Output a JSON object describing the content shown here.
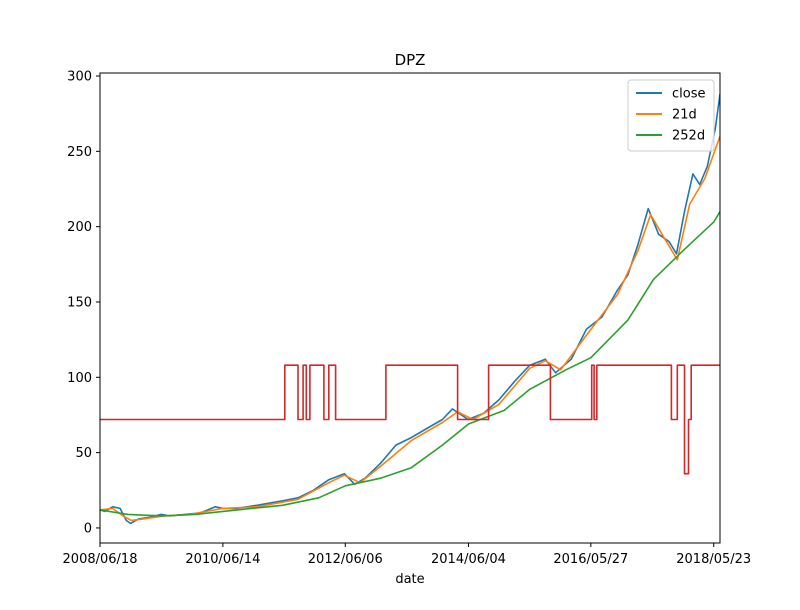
{
  "chart_data": {
    "type": "line",
    "title": "DPZ",
    "xlabel": "date",
    "ylabel": "",
    "xlim": [
      "2008-06-18",
      "2018-06-29"
    ],
    "ylim": [
      -10,
      302
    ],
    "x_ticks": [
      "2008/06/18",
      "2010/06/14",
      "2012/06/06",
      "2014/06/04",
      "2016/05/27",
      "2018/05/23"
    ],
    "y_ticks": [
      0,
      50,
      100,
      150,
      200,
      250,
      300
    ],
    "grid": false,
    "legend_position": "top-right",
    "colors": {
      "close": "#1f77b4",
      "21d": "#ff7f0e",
      "252d": "#2ca02c",
      "regime": "#d62728"
    },
    "series": [
      {
        "name": "close",
        "color": "#1f77b4",
        "points": [
          [
            "2008-06-18",
            12
          ],
          [
            "2008-07-15",
            11
          ],
          [
            "2008-09-01",
            14
          ],
          [
            "2008-10-15",
            13
          ],
          [
            "2008-11-20",
            5
          ],
          [
            "2008-12-15",
            3
          ],
          [
            "2009-02-01",
            6
          ],
          [
            "2009-04-01",
            7
          ],
          [
            "2009-06-15",
            9
          ],
          [
            "2009-08-01",
            8
          ],
          [
            "2009-11-01",
            9
          ],
          [
            "2010-02-01",
            10
          ],
          [
            "2010-05-01",
            14
          ],
          [
            "2010-06-14",
            13
          ],
          [
            "2010-09-01",
            13
          ],
          [
            "2011-01-01",
            15
          ],
          [
            "2011-06-01",
            18
          ],
          [
            "2011-09-01",
            20
          ],
          [
            "2011-12-01",
            25
          ],
          [
            "2012-03-01",
            32
          ],
          [
            "2012-06-01",
            36
          ],
          [
            "2012-08-01",
            29
          ],
          [
            "2012-10-01",
            33
          ],
          [
            "2013-01-01",
            43
          ],
          [
            "2013-04-01",
            55
          ],
          [
            "2013-07-01",
            60
          ],
          [
            "2013-10-01",
            66
          ],
          [
            "2014-01-01",
            72
          ],
          [
            "2014-03-01",
            79
          ],
          [
            "2014-06-01",
            72
          ],
          [
            "2014-09-01",
            76
          ],
          [
            "2014-12-01",
            85
          ],
          [
            "2015-03-01",
            97
          ],
          [
            "2015-06-01",
            108
          ],
          [
            "2015-09-01",
            112
          ],
          [
            "2015-11-01",
            103
          ],
          [
            "2016-02-01",
            112
          ],
          [
            "2016-05-01",
            132
          ],
          [
            "2016-08-01",
            140
          ],
          [
            "2016-11-01",
            158
          ],
          [
            "2017-01-01",
            168
          ],
          [
            "2017-03-01",
            188
          ],
          [
            "2017-05-01",
            212
          ],
          [
            "2017-07-01",
            195
          ],
          [
            "2017-09-01",
            190
          ],
          [
            "2017-10-15",
            182
          ],
          [
            "2017-12-01",
            210
          ],
          [
            "2018-01-20",
            235
          ],
          [
            "2018-03-01",
            228
          ],
          [
            "2018-04-15",
            240
          ],
          [
            "2018-06-01",
            265
          ],
          [
            "2018-06-29",
            288
          ]
        ]
      },
      {
        "name": "21d",
        "color": "#ff7f0e",
        "points": [
          [
            "2008-06-18",
            12
          ],
          [
            "2008-09-01",
            13
          ],
          [
            "2008-11-01",
            8
          ],
          [
            "2008-12-20",
            5
          ],
          [
            "2009-03-01",
            6
          ],
          [
            "2009-07-01",
            8
          ],
          [
            "2009-12-01",
            9
          ],
          [
            "2010-06-14",
            13
          ],
          [
            "2011-01-01",
            14
          ],
          [
            "2011-09-01",
            19
          ],
          [
            "2012-03-01",
            30
          ],
          [
            "2012-06-01",
            35
          ],
          [
            "2012-09-01",
            30
          ],
          [
            "2013-01-01",
            41
          ],
          [
            "2013-07-01",
            58
          ],
          [
            "2014-01-01",
            70
          ],
          [
            "2014-04-01",
            77
          ],
          [
            "2014-07-01",
            72
          ],
          [
            "2014-12-01",
            82
          ],
          [
            "2015-06-01",
            106
          ],
          [
            "2015-09-01",
            111
          ],
          [
            "2015-12-01",
            105
          ],
          [
            "2016-05-01",
            128
          ],
          [
            "2016-11-01",
            155
          ],
          [
            "2017-03-01",
            184
          ],
          [
            "2017-05-15",
            208
          ],
          [
            "2017-08-01",
            193
          ],
          [
            "2017-10-20",
            178
          ],
          [
            "2018-01-01",
            215
          ],
          [
            "2018-04-01",
            232
          ],
          [
            "2018-06-29",
            260
          ]
        ]
      },
      {
        "name": "252d",
        "color": "#2ca02c",
        "points": [
          [
            "2008-06-18",
            12
          ],
          [
            "2008-12-01",
            9
          ],
          [
            "2009-06-18",
            8
          ],
          [
            "2010-01-01",
            9
          ],
          [
            "2010-06-14",
            11
          ],
          [
            "2011-06-01",
            15
          ],
          [
            "2012-01-01",
            20
          ],
          [
            "2012-06-06",
            28
          ],
          [
            "2013-01-01",
            33
          ],
          [
            "2013-07-01",
            40
          ],
          [
            "2014-01-01",
            55
          ],
          [
            "2014-06-04",
            69
          ],
          [
            "2015-01-01",
            78
          ],
          [
            "2015-06-01",
            92
          ],
          [
            "2016-01-01",
            105
          ],
          [
            "2016-05-27",
            113
          ],
          [
            "2017-01-01",
            138
          ],
          [
            "2017-06-01",
            165
          ],
          [
            "2017-12-01",
            185
          ],
          [
            "2018-05-23",
            203
          ],
          [
            "2018-06-29",
            210
          ]
        ]
      },
      {
        "name": "",
        "color": "#d62728",
        "step": true,
        "points": [
          [
            "2008-06-18",
            72
          ],
          [
            "2011-06-15",
            108
          ],
          [
            "2011-09-01",
            72
          ],
          [
            "2011-10-01",
            108
          ],
          [
            "2011-10-20",
            72
          ],
          [
            "2011-11-10",
            108
          ],
          [
            "2012-02-01",
            72
          ],
          [
            "2012-03-01",
            108
          ],
          [
            "2012-04-10",
            72
          ],
          [
            "2013-02-01",
            108
          ],
          [
            "2014-04-01",
            72
          ],
          [
            "2014-10-01",
            108
          ],
          [
            "2015-10-01",
            72
          ],
          [
            "2016-06-01",
            108
          ],
          [
            "2016-06-15",
            72
          ],
          [
            "2016-07-01",
            108
          ],
          [
            "2017-09-15",
            72
          ],
          [
            "2017-10-20",
            108
          ],
          [
            "2017-12-01",
            36
          ],
          [
            "2017-12-25",
            72
          ],
          [
            "2018-01-10",
            108
          ],
          [
            "2018-06-29",
            108
          ]
        ]
      }
    ]
  }
}
